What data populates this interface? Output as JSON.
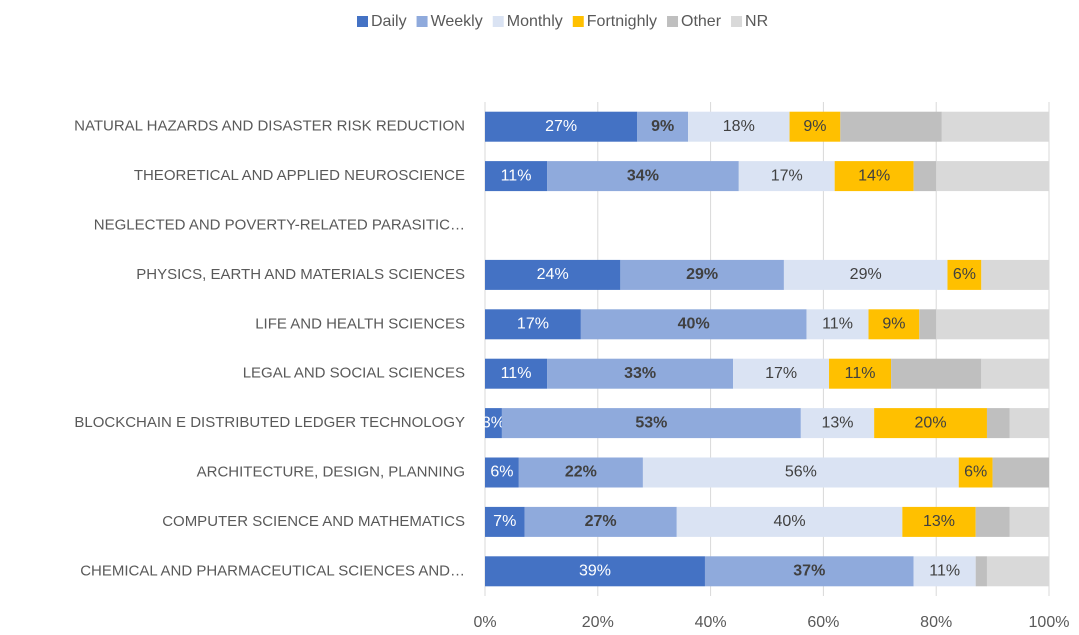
{
  "chart_data": {
    "type": "stacked_barh",
    "categories": [
      "NATURAL HAZARDS AND DISASTER RISK REDUCTION",
      "THEORETICAL AND APPLIED NEUROSCIENCE",
      "NEGLECTED AND POVERTY-RELATED PARASITIC…",
      "PHYSICS, EARTH AND MATERIALS SCIENCES",
      "LIFE AND HEALTH SCIENCES",
      "LEGAL AND SOCIAL SCIENCES",
      "BLOCKCHAIN E DISTRIBUTED LEDGER TECHNOLOGY",
      "ARCHITECTURE, DESIGN, PLANNING",
      "COMPUTER SCIENCE AND MATHEMATICS",
      "CHEMICAL AND PHARMACEUTICAL SCIENCES AND…"
    ],
    "series": [
      {
        "name": "Daily",
        "color": "#4472c4",
        "values": [
          27,
          11,
          null,
          24,
          17,
          11,
          3,
          6,
          7,
          39
        ],
        "value_labels": [
          "27%",
          "11%",
          null,
          "24%",
          "17%",
          "11%",
          "3%",
          "6%",
          "7%",
          "39%"
        ]
      },
      {
        "name": "Weekly",
        "color": "#8faadc",
        "values": [
          9,
          34,
          null,
          29,
          40,
          33,
          53,
          22,
          27,
          37
        ],
        "value_labels": [
          "9%",
          "34%",
          null,
          "29%",
          "40%",
          "33%",
          "53%",
          "22%",
          "27%",
          "37%"
        ]
      },
      {
        "name": "Monthly",
        "color": "#dae3f3",
        "values": [
          18,
          17,
          null,
          29,
          11,
          17,
          13,
          56,
          40,
          11
        ],
        "value_labels": [
          "18%",
          "17%",
          null,
          "29%",
          "11%",
          "17%",
          "13%",
          "56%",
          "40%",
          "11%"
        ]
      },
      {
        "name": "Fortnighly",
        "color": "#ffc000",
        "values": [
          9,
          14,
          null,
          6,
          9,
          11,
          20,
          6,
          13,
          0
        ],
        "value_labels": [
          "9%",
          "14%",
          null,
          "6%",
          "9%",
          "11%",
          "20%",
          "6%",
          "13%",
          null
        ]
      },
      {
        "name": "Other",
        "color": "#bfbfbf",
        "values": [
          18,
          4,
          null,
          0,
          3,
          16,
          4,
          10,
          6,
          2
        ]
      },
      {
        "name": "NR",
        "color": "#d9d9d9",
        "values": [
          19,
          20,
          null,
          12,
          20,
          12,
          7,
          0,
          7,
          11
        ]
      }
    ],
    "xlim": [
      0,
      100
    ],
    "xticks": [
      {
        "value": 0,
        "label": "0%"
      },
      {
        "value": 20,
        "label": "20%"
      },
      {
        "value": 40,
        "label": "40%"
      },
      {
        "value": 60,
        "label": "60%"
      },
      {
        "value": 80,
        "label": "80%"
      },
      {
        "value": 100,
        "label": "100%"
      }
    ],
    "grid": true,
    "legend": "top"
  }
}
